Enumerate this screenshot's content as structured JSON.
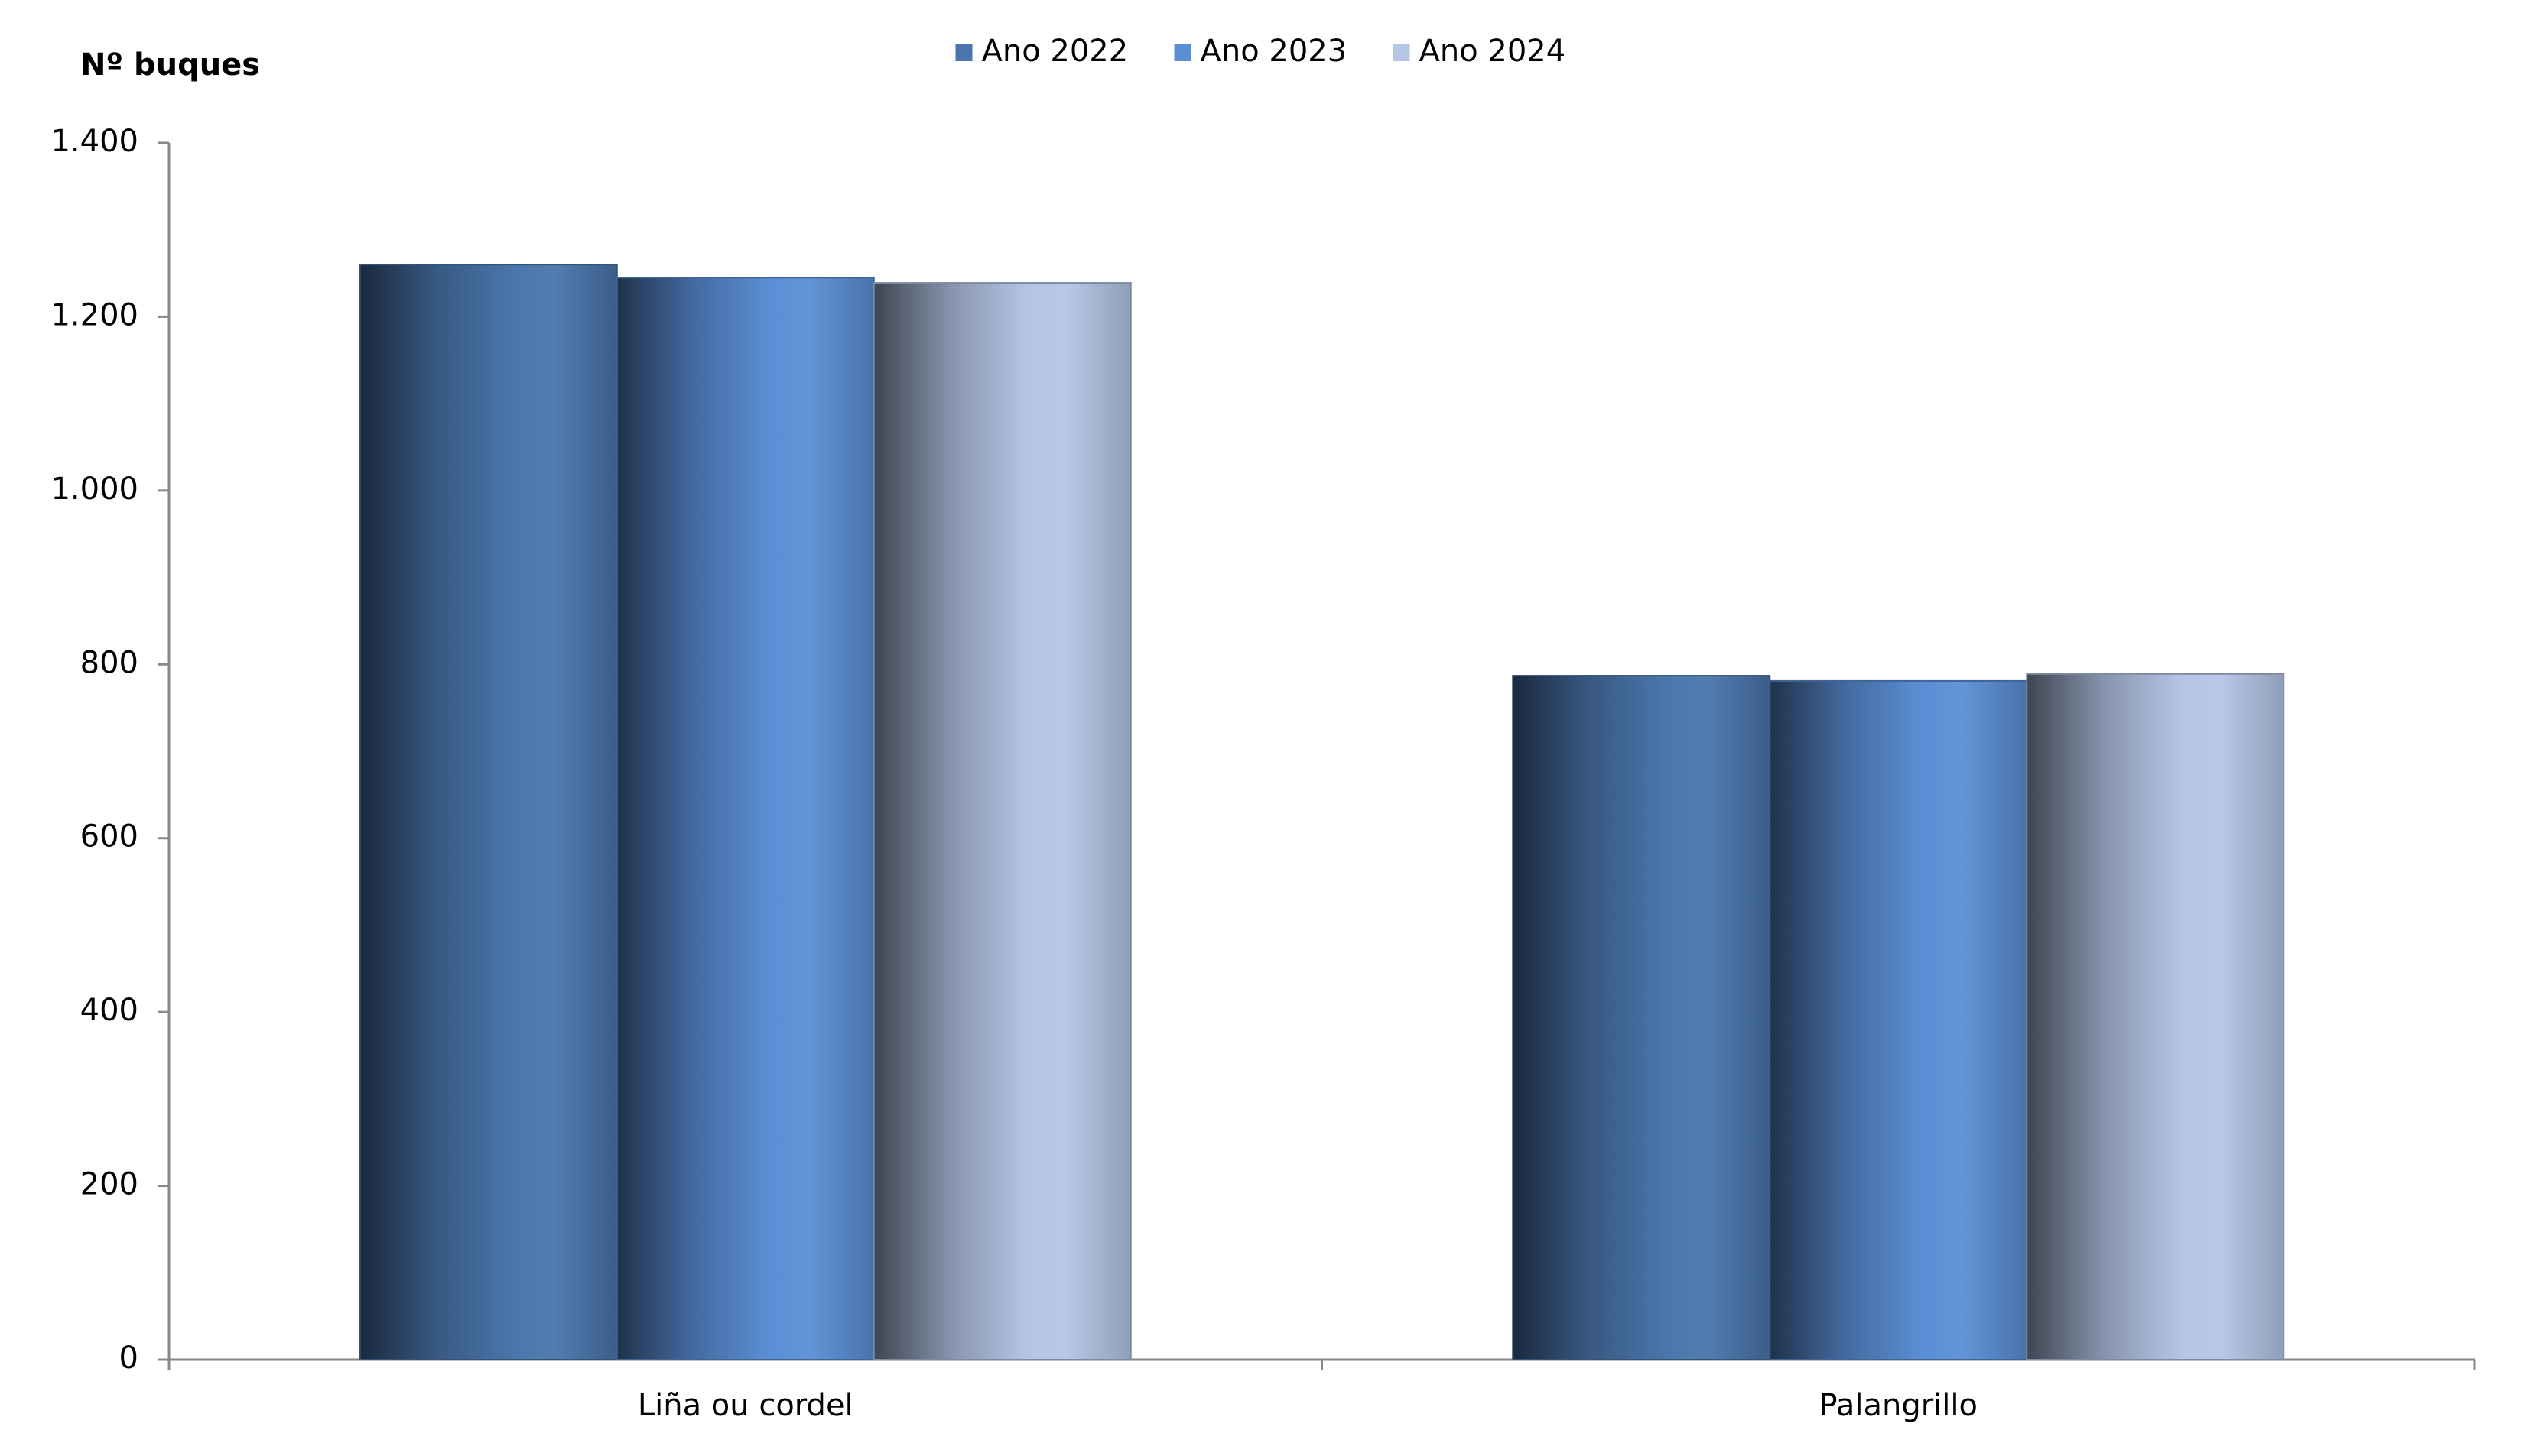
{
  "chart_data": {
    "type": "bar",
    "y_label": "Nº  buques",
    "categories": [
      "Liña ou cordel",
      "Palangrillo"
    ],
    "series": [
      {
        "name": "Ano 2022",
        "color": "#4a76ad",
        "values": [
          1260,
          787
        ]
      },
      {
        "name": "Ano 2023",
        "color": "#5a8fd6",
        "values": [
          1245,
          781
        ]
      },
      {
        "name": "Ano 2024",
        "color": "#b4c5e6",
        "values": [
          1239,
          789
        ]
      }
    ],
    "ylim": [
      0,
      1400
    ],
    "yticks": [
      0,
      200,
      400,
      600,
      800,
      {
        "value": 1000,
        "label": "1.000"
      },
      {
        "value": 1200,
        "label": "1.200"
      },
      {
        "value": 1400,
        "label": "1.400"
      }
    ],
    "legend": "top"
  }
}
